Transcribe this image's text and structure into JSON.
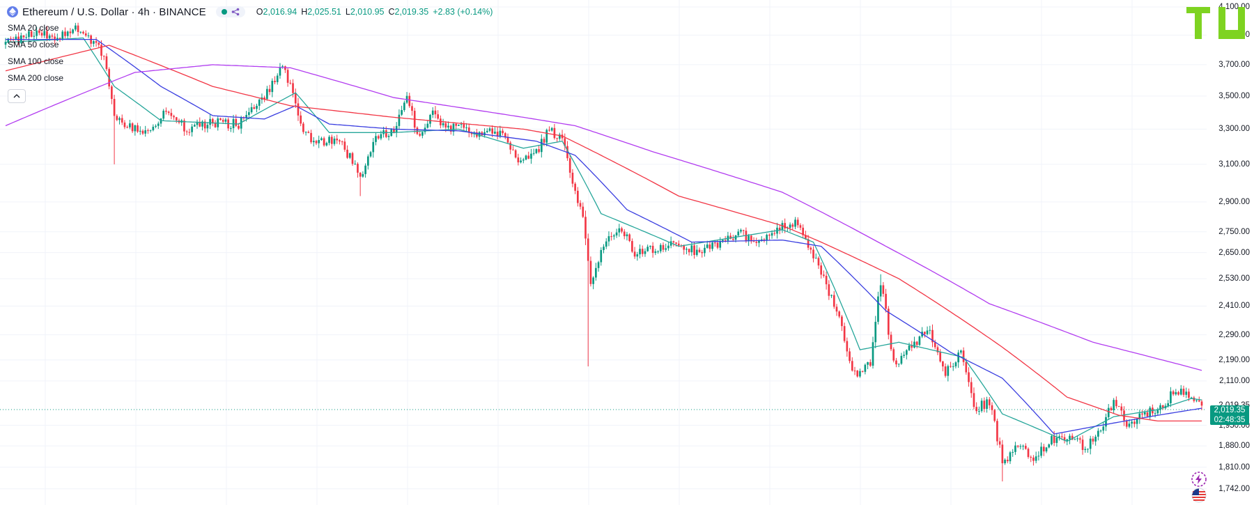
{
  "header": {
    "symbol_title": "Ethereum / U.S. Dollar · 4h · BINANCE",
    "ohlc": {
      "o_label": "O",
      "o": "2,016.94",
      "h_label": "H",
      "h": "2,025.51",
      "l_label": "L",
      "l": "2,010.95",
      "c_label": "C",
      "c": "2,019.35",
      "change": "+2.83 (+0.14%)"
    }
  },
  "indicators": [
    {
      "label": "SMA 20 close",
      "color": "#26a69a"
    },
    {
      "label": "SMA 50 close",
      "color": "#3a3ee0"
    },
    {
      "label": "SMA 100 close",
      "color": "#f23645"
    },
    {
      "label": "SMA 200 close",
      "color": "#b23cf0"
    }
  ],
  "price_axis": {
    "ticks": [
      "4,100.00",
      "3,900.00",
      "3,700.00",
      "3,500.00",
      "3,300.00",
      "3,100.00",
      "2,900.00",
      "2,750.00",
      "2,650.00",
      "2,530.00",
      "2,410.00",
      "2,290.00",
      "2,190.00",
      "2,110.00",
      "2,019.35",
      "1,950.00",
      "1,880.00",
      "1,810.00",
      "1,742.00"
    ]
  },
  "current_price": {
    "price": "2,019.35",
    "countdown": "02:48:35"
  },
  "colors": {
    "up": "#089981",
    "down": "#f23645",
    "grid": "#f0f3fa"
  },
  "icons": {
    "coin": "ethereum-icon",
    "logo": "brand-logo",
    "lightning": "lightning-icon",
    "flag": "us-flag-icon"
  },
  "chart_data": {
    "type": "candlestick",
    "timeframe": "4h",
    "y_axis_scale": "log",
    "ylim": [
      1720,
      4110
    ],
    "price_anchors": [
      [
        0,
        3840
      ],
      [
        10,
        3920
      ],
      [
        20,
        3880
      ],
      [
        27,
        3960
      ],
      [
        33,
        3860
      ],
      [
        38,
        3770
      ],
      [
        42,
        3380
      ],
      [
        48,
        3310
      ],
      [
        55,
        3300
      ],
      [
        62,
        3410
      ],
      [
        70,
        3300
      ],
      [
        80,
        3340
      ],
      [
        90,
        3330
      ],
      [
        100,
        3500
      ],
      [
        107,
        3680
      ],
      [
        110,
        3560
      ],
      [
        116,
        3260
      ],
      [
        130,
        3210
      ],
      [
        137,
        3040
      ],
      [
        143,
        3240
      ],
      [
        150,
        3300
      ],
      [
        155,
        3480
      ],
      [
        160,
        3240
      ],
      [
        165,
        3390
      ],
      [
        170,
        3300
      ],
      [
        175,
        3310
      ],
      [
        182,
        3270
      ],
      [
        192,
        3290
      ],
      [
        197,
        3120
      ],
      [
        205,
        3170
      ],
      [
        210,
        3300
      ],
      [
        215,
        3230
      ],
      [
        223,
        2800
      ],
      [
        226,
        2520
      ],
      [
        232,
        2720
      ],
      [
        238,
        2760
      ],
      [
        243,
        2650
      ],
      [
        252,
        2670
      ],
      [
        258,
        2710
      ],
      [
        266,
        2660
      ],
      [
        275,
        2690
      ],
      [
        283,
        2750
      ],
      [
        290,
        2690
      ],
      [
        299,
        2770
      ],
      [
        306,
        2790
      ],
      [
        312,
        2640
      ],
      [
        320,
        2420
      ],
      [
        328,
        2130
      ],
      [
        334,
        2180
      ],
      [
        338,
        2520
      ],
      [
        343,
        2170
      ],
      [
        350,
        2240
      ],
      [
        356,
        2320
      ],
      [
        363,
        2140
      ],
      [
        369,
        2230
      ],
      [
        374,
        2010
      ],
      [
        380,
        2030
      ],
      [
        385,
        1830
      ],
      [
        392,
        1880
      ],
      [
        398,
        1840
      ],
      [
        403,
        1895
      ],
      [
        410,
        1910
      ],
      [
        417,
        1875
      ],
      [
        423,
        1935
      ],
      [
        428,
        2040
      ],
      [
        433,
        1960
      ],
      [
        440,
        1985
      ],
      [
        447,
        2020
      ],
      [
        452,
        2075
      ],
      [
        458,
        2050
      ],
      [
        462,
        2019.35
      ]
    ],
    "sma_anchors": {
      "SMA 20 close": [
        [
          0,
          3850
        ],
        [
          30,
          3880
        ],
        [
          42,
          3560
        ],
        [
          60,
          3350
        ],
        [
          90,
          3330
        ],
        [
          112,
          3520
        ],
        [
          125,
          3280
        ],
        [
          150,
          3280
        ],
        [
          175,
          3300
        ],
        [
          200,
          3190
        ],
        [
          215,
          3230
        ],
        [
          230,
          2840
        ],
        [
          260,
          2680
        ],
        [
          300,
          2760
        ],
        [
          312,
          2700
        ],
        [
          330,
          2230
        ],
        [
          345,
          2260
        ],
        [
          370,
          2200
        ],
        [
          385,
          1990
        ],
        [
          410,
          1895
        ],
        [
          428,
          1980
        ],
        [
          445,
          2005
        ],
        [
          458,
          2045
        ],
        [
          462,
          2040
        ]
      ],
      "SMA 50 close": [
        [
          0,
          3870
        ],
        [
          35,
          3870
        ],
        [
          60,
          3560
        ],
        [
          80,
          3380
        ],
        [
          100,
          3360
        ],
        [
          112,
          3440
        ],
        [
          125,
          3330
        ],
        [
          150,
          3300
        ],
        [
          175,
          3290
        ],
        [
          205,
          3230
        ],
        [
          220,
          3150
        ],
        [
          240,
          2860
        ],
        [
          265,
          2700
        ],
        [
          300,
          2710
        ],
        [
          315,
          2680
        ],
        [
          340,
          2390
        ],
        [
          365,
          2220
        ],
        [
          385,
          2120
        ],
        [
          405,
          1920
        ],
        [
          420,
          1945
        ],
        [
          445,
          1985
        ],
        [
          462,
          2010
        ]
      ],
      "SMA 100 close": [
        [
          0,
          3660
        ],
        [
          40,
          3830
        ],
        [
          80,
          3560
        ],
        [
          110,
          3440
        ],
        [
          150,
          3370
        ],
        [
          200,
          3300
        ],
        [
          215,
          3260
        ],
        [
          260,
          2930
        ],
        [
          300,
          2780
        ],
        [
          315,
          2700
        ],
        [
          345,
          2530
        ],
        [
          385,
          2240
        ],
        [
          410,
          2050
        ],
        [
          430,
          1985
        ],
        [
          445,
          1965
        ],
        [
          462,
          1965
        ]
      ],
      "SMA 200 close": [
        [
          0,
          3320
        ],
        [
          50,
          3650
        ],
        [
          80,
          3700
        ],
        [
          110,
          3680
        ],
        [
          150,
          3490
        ],
        [
          200,
          3370
        ],
        [
          220,
          3320
        ],
        [
          250,
          3170
        ],
        [
          300,
          2950
        ],
        [
          340,
          2680
        ],
        [
          380,
          2420
        ],
        [
          420,
          2260
        ],
        [
          462,
          2150
        ]
      ]
    }
  }
}
